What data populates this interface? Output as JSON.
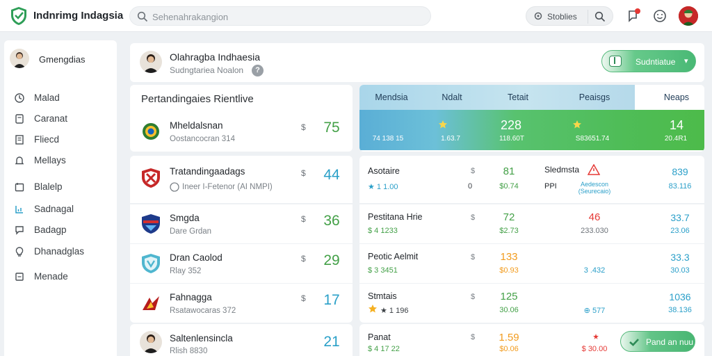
{
  "header": {
    "brand": "Indnrimg Indagsia",
    "search_placeholder": "Sehenahrakangion",
    "stats_button": "Stoblies"
  },
  "sidebar": {
    "user_name": "Gmengdias",
    "items": [
      {
        "label": "Malad",
        "icon": "clock-icon"
      },
      {
        "label": "Caranat",
        "icon": "doc-icon"
      },
      {
        "label": "Fliecd",
        "icon": "file-icon"
      },
      {
        "label": "Mellays",
        "icon": "bell-icon"
      },
      {
        "label": "Blalelp",
        "icon": "calendar-icon"
      },
      {
        "label": "Sadnagal",
        "icon": "chart-icon"
      },
      {
        "label": "Badagp",
        "icon": "chat-icon"
      },
      {
        "label": "Dhanadglas",
        "icon": "lightbulb-icon"
      },
      {
        "label": "Menade",
        "icon": "list-icon"
      }
    ]
  },
  "profile": {
    "name": "Olahragba Indhaesia",
    "subtitle": "Sudngtariea Noalon",
    "help": "?",
    "select_label": "Sudntiatue",
    "select_chevron": "▾"
  },
  "standings": {
    "title": "Pertandingaies Rientlive",
    "rows": [
      {
        "name": "Mheldalsnan",
        "meta": "Oostancocran 314",
        "score": "75",
        "delta": "$",
        "color": "#43a047",
        "badge": "ball"
      },
      {
        "name": "Tratandingaadags",
        "meta": "Ineer I-Fetenor (AI NMPI)",
        "score": "44",
        "delta": "$",
        "color": "#2aa0c8",
        "badge": "shield-red"
      },
      {
        "name": "Smgda",
        "meta": "Dare Grdan",
        "score": "36",
        "delta": "$",
        "color": "#43a047",
        "badge": "shield-navy"
      },
      {
        "name": "Dran Caolod",
        "meta": "Rlay 352",
        "score": "29",
        "delta": "$",
        "color": "#43a047",
        "badge": "shield-teal"
      },
      {
        "name": "Fahnagga",
        "meta": "Rsatawocaras 372",
        "score": "17",
        "delta": "$",
        "color": "#2aa0c8",
        "badge": "wing"
      },
      {
        "name": "Saltenlensincla",
        "meta": "Rlish 8830",
        "score": "21",
        "delta": "",
        "color": "#2aa0c8",
        "badge": "person"
      }
    ]
  },
  "stats_table": {
    "headers": [
      "Mendsia",
      "Ndalt",
      "Tetait",
      "Peaisgs",
      "Neaps"
    ],
    "band": {
      "values": [
        "",
        "",
        "228",
        "",
        "14"
      ],
      "subs": [
        "74 138 15",
        "1.63.7",
        "118.60T",
        "S83651.74",
        "20.4R1"
      ]
    },
    "rows": [
      {
        "name": "Asotaire",
        "stat": "★ 1 1.00",
        "delta": "$",
        "v1": "81",
        "v1_color": "#43a047",
        "v1s": "$0.74",
        "v1s_color": "#43a047",
        "zero": "0",
        "tag": "Sledmsta",
        "tag2": "PPI",
        "v2": "",
        "v2s": "Aedescon (Seurecaio)",
        "v3": "839",
        "v3s": "83.116"
      },
      {
        "name": "Pestitana Hrie",
        "stat": "$ 4 1233",
        "delta": "$",
        "v1": "72",
        "v1_color": "#43a047",
        "v1s": "$2.73",
        "v1s_color": "#43a047",
        "zero": "",
        "tag": "",
        "tag2": "",
        "v2": "46",
        "v2_color": "#e53935",
        "v2s": "233.030",
        "v2s_color": "#6c7278",
        "v3": "33.7",
        "v3s": "23.06"
      },
      {
        "name": "Peotic Aelmit",
        "stat": "$ 3 3451",
        "delta": "$",
        "v1": "133",
        "v1_color": "#f29b1d",
        "v1s": "$0.93",
        "v1s_color": "#f29b1d",
        "zero": "",
        "tag": "",
        "tag2": "",
        "v2": "",
        "v2s": "3 .432",
        "v2s_color": "#2a9fc9",
        "v3": "33.3",
        "v3s": "30.03"
      },
      {
        "name": "Stmtais",
        "stat": "★ 1 196",
        "delta": "$",
        "v1": "125",
        "v1_color": "#43a047",
        "v1s": "30.06",
        "v1s_color": "#43a047",
        "zero": "",
        "tag": "",
        "tag2": "",
        "v2": "",
        "v2s": "⊕ 577",
        "v2s_color": "#2a9fc9",
        "v3": "1036",
        "v3s": "38.136"
      },
      {
        "name": "Panat",
        "stat": "$ 4 17 22",
        "delta": "$",
        "v1": "1.59",
        "v1_color": "#f29b1d",
        "v1s": "$0.06",
        "v1s_color": "#f29b1d",
        "zero": "",
        "tag": "",
        "tag2": "",
        "v2": "",
        "v2s": "$ 30.00",
        "v2s_color": "#e53935",
        "v3": "",
        "v3s": ""
      }
    ]
  },
  "confirm_label": "Pand an nuu",
  "colors": {
    "accent": "#4cb96f",
    "blue": "#2a9fc9",
    "red": "#e53935",
    "orange": "#f29b1d"
  }
}
